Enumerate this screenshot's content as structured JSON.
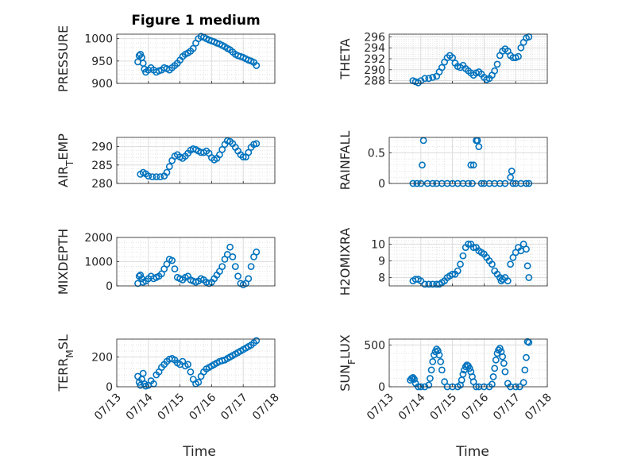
{
  "chart_data": [
    {
      "type": "scatter",
      "title": "Figure 1 medium",
      "ylabel": "PRESSURE",
      "xlim": [
        "07/13",
        "07/18"
      ],
      "ylim": [
        900,
        1010
      ],
      "yticks": [
        900,
        950,
        1000
      ],
      "x": [
        "07/13 16:00",
        "07/13 17:00",
        "07/13 18:00",
        "07/13 19:00",
        "07/13 20:00",
        "07/13 21:00",
        "07/13 22:00",
        "07/14 00:00",
        "07/14 02:00",
        "07/14 04:00",
        "07/14 06:00",
        "07/14 08:00",
        "07/14 10:00",
        "07/14 12:00",
        "07/14 14:00",
        "07/14 16:00",
        "07/14 18:00",
        "07/14 20:00",
        "07/14 22:00",
        "07/15 00:00",
        "07/15 02:00",
        "07/15 04:00",
        "07/15 06:00",
        "07/15 08:00",
        "07/15 10:00",
        "07/15 12:00",
        "07/15 14:00",
        "07/15 16:00",
        "07/15 18:00",
        "07/15 20:00",
        "07/15 22:00",
        "07/16 00:00",
        "07/16 02:00",
        "07/16 04:00",
        "07/16 06:00",
        "07/16 08:00",
        "07/16 10:00",
        "07/16 12:00",
        "07/16 14:00",
        "07/16 16:00",
        "07/16 18:00",
        "07/16 20:00",
        "07/16 22:00",
        "07/17 00:00",
        "07/17 02:00",
        "07/17 04:00",
        "07/17 06:00",
        "07/17 08:00",
        "07/17 10:00"
      ],
      "y": [
        948,
        962,
        965,
        958,
        945,
        932,
        925,
        930,
        935,
        930,
        925,
        928,
        930,
        935,
        933,
        930,
        935,
        940,
        945,
        952,
        960,
        965,
        968,
        972,
        978,
        990,
        1000,
        1005,
        1003,
        1000,
        997,
        995,
        993,
        990,
        988,
        985,
        982,
        978,
        975,
        970,
        965,
        962,
        960,
        958,
        955,
        952,
        950,
        947,
        940
      ]
    },
    {
      "type": "scatter",
      "ylabel": "THETA",
      "xlim": [
        "07/13",
        "07/18"
      ],
      "ylim": [
        287.5,
        296.5
      ],
      "yticks": [
        288,
        290,
        292,
        294,
        296
      ],
      "x": [
        "07/13 18:00",
        "07/13 20:00",
        "07/13 22:00",
        "07/14 00:00",
        "07/14 03:00",
        "07/14 06:00",
        "07/14 09:00",
        "07/14 12:00",
        "07/14 14:00",
        "07/14 16:00",
        "07/14 18:00",
        "07/14 20:00",
        "07/14 22:00",
        "07/15 00:00",
        "07/15 02:00",
        "07/15 04:00",
        "07/15 06:00",
        "07/15 08:00",
        "07/15 10:00",
        "07/15 12:00",
        "07/15 14:00",
        "07/15 16:00",
        "07/15 18:00",
        "07/15 20:00",
        "07/15 22:00",
        "07/16 00:00",
        "07/16 02:00",
        "07/16 04:00",
        "07/16 06:00",
        "07/16 08:00",
        "07/16 10:00",
        "07/16 12:00",
        "07/16 14:00",
        "07/16 16:00",
        "07/16 18:00",
        "07/16 20:00",
        "07/16 22:00",
        "07/17 00:00",
        "07/17 02:00",
        "07/17 04:00",
        "07/17 06:00",
        "07/17 08:00",
        "07/17 10:00"
      ],
      "y": [
        288.0,
        287.8,
        287.6,
        288.0,
        288.4,
        288.4,
        288.6,
        288.8,
        289.6,
        290.4,
        291.4,
        292.2,
        292.6,
        292.2,
        291.2,
        290.6,
        290.4,
        290.8,
        290.2,
        289.8,
        289.4,
        289.0,
        289.4,
        289.6,
        289.2,
        288.6,
        288.2,
        288.4,
        289.0,
        289.8,
        291.0,
        292.6,
        293.4,
        293.8,
        293.4,
        292.6,
        292.2,
        292.2,
        292.4,
        294.0,
        295.0,
        295.8,
        296.0
      ]
    },
    {
      "type": "scatter",
      "ylabel": "AIR_TEMP",
      "xlim": [
        "07/13",
        "07/18"
      ],
      "ylim": [
        280,
        292.5
      ],
      "yticks": [
        280,
        285,
        290
      ],
      "x": [
        "07/13 18:00",
        "07/13 20:00",
        "07/13 22:00",
        "07/14 00:00",
        "07/14 03:00",
        "07/14 06:00",
        "07/14 09:00",
        "07/14 12:00",
        "07/14 14:00",
        "07/14 16:00",
        "07/14 18:00",
        "07/14 20:00",
        "07/14 22:00",
        "07/15 00:00",
        "07/15 02:00",
        "07/15 04:00",
        "07/15 06:00",
        "07/15 08:00",
        "07/15 10:00",
        "07/15 12:00",
        "07/15 14:00",
        "07/15 16:00",
        "07/15 18:00",
        "07/15 20:00",
        "07/15 22:00",
        "07/16 00:00",
        "07/16 02:00",
        "07/16 04:00",
        "07/16 06:00",
        "07/16 08:00",
        "07/16 10:00",
        "07/16 12:00",
        "07/16 14:00",
        "07/16 16:00",
        "07/16 18:00",
        "07/16 20:00",
        "07/16 22:00",
        "07/17 00:00",
        "07/17 02:00",
        "07/17 04:00",
        "07/17 06:00",
        "07/17 08:00",
        "07/17 10:00"
      ],
      "y": [
        282.5,
        283.0,
        282.6,
        282.0,
        281.8,
        281.8,
        281.8,
        282.0,
        283.0,
        284.6,
        286.2,
        287.4,
        287.8,
        287.2,
        286.8,
        287.4,
        288.2,
        289.0,
        289.4,
        289.2,
        288.8,
        288.4,
        288.4,
        288.8,
        288.2,
        287.0,
        286.4,
        286.8,
        287.8,
        289.2,
        290.6,
        291.6,
        291.4,
        290.8,
        289.8,
        288.8,
        287.8,
        287.2,
        287.2,
        288.4,
        289.8,
        290.6,
        290.8
      ]
    },
    {
      "type": "scatter",
      "ylabel": "RAINFALL",
      "xlim": [
        "07/13",
        "07/18"
      ],
      "ylim": [
        0,
        0.75
      ],
      "yticks": [
        0,
        0.5
      ],
      "x": [
        "07/13 18:00",
        "07/13 21:00",
        "07/14 00:00",
        "07/14 01:00",
        "07/14 02:00",
        "07/14 05:00",
        "07/14 09:00",
        "07/14 12:00",
        "07/14 16:00",
        "07/14 20:00",
        "07/15 00:00",
        "07/15 04:00",
        "07/15 08:00",
        "07/15 12:00",
        "07/15 14:00",
        "07/15 15:00",
        "07/15 16:00",
        "07/15 18:00",
        "07/15 19:00",
        "07/15 20:00",
        "07/15 22:00",
        "07/16 00:00",
        "07/16 04:00",
        "07/16 08:00",
        "07/16 12:00",
        "07/16 16:00",
        "07/16 20:00",
        "07/16 21:00",
        "07/16 22:00",
        "07/17 00:00",
        "07/17 04:00",
        "07/17 08:00",
        "07/17 10:00"
      ],
      "y": [
        0,
        0,
        0,
        0.3,
        0.7,
        0,
        0,
        0,
        0,
        0,
        0,
        0,
        0,
        0,
        0.3,
        0,
        0.3,
        0.7,
        0.7,
        0.6,
        0,
        0,
        0,
        0,
        0,
        0,
        0.1,
        0.2,
        0,
        0,
        0,
        0,
        0
      ]
    },
    {
      "type": "scatter",
      "ylabel": "MIXDEPTH",
      "xlim": [
        "07/13",
        "07/18"
      ],
      "ylim": [
        0,
        2000
      ],
      "yticks": [
        0,
        1000,
        2000
      ],
      "x": [
        "07/13 16:00",
        "07/13 17:00",
        "07/13 18:00",
        "07/13 19:00",
        "07/13 20:00",
        "07/13 22:00",
        "07/14 00:00",
        "07/14 02:00",
        "07/14 04:00",
        "07/14 06:00",
        "07/14 08:00",
        "07/14 10:00",
        "07/14 12:00",
        "07/14 14:00",
        "07/14 16:00",
        "07/14 18:00",
        "07/14 20:00",
        "07/14 22:00",
        "07/15 00:00",
        "07/15 02:00",
        "07/15 04:00",
        "07/15 06:00",
        "07/15 08:00",
        "07/15 10:00",
        "07/15 12:00",
        "07/15 14:00",
        "07/15 16:00",
        "07/15 18:00",
        "07/15 20:00",
        "07/15 22:00",
        "07/16 00:00",
        "07/16 02:00",
        "07/16 04:00",
        "07/16 06:00",
        "07/16 08:00",
        "07/16 10:00",
        "07/16 12:00",
        "07/16 14:00",
        "07/16 16:00",
        "07/16 18:00",
        "07/16 20:00",
        "07/16 22:00",
        "07/17 00:00",
        "07/17 02:00",
        "07/17 04:00",
        "07/17 06:00",
        "07/17 08:00",
        "07/17 10:00"
      ],
      "y": [
        100,
        400,
        450,
        300,
        150,
        200,
        300,
        400,
        300,
        350,
        400,
        500,
        700,
        900,
        1100,
        1050,
        700,
        350,
        300,
        250,
        350,
        400,
        250,
        200,
        150,
        200,
        300,
        250,
        150,
        100,
        150,
        300,
        450,
        600,
        800,
        1100,
        1300,
        1600,
        1200,
        800,
        400,
        100,
        50,
        100,
        300,
        800,
        1200,
        1400
      ]
    },
    {
      "type": "scatter",
      "ylabel": "H2OMIXRA",
      "xlim": [
        "07/13",
        "07/18"
      ],
      "ylim": [
        7.5,
        10.4
      ],
      "yticks": [
        8,
        9,
        10
      ],
      "x": [
        "07/13 18:00",
        "07/13 20:00",
        "07/13 22:00",
        "07/14 00:00",
        "07/14 03:00",
        "07/14 06:00",
        "07/14 09:00",
        "07/14 12:00",
        "07/14 14:00",
        "07/14 16:00",
        "07/14 18:00",
        "07/14 20:00",
        "07/14 22:00",
        "07/15 00:00",
        "07/15 02:00",
        "07/15 04:00",
        "07/15 06:00",
        "07/15 08:00",
        "07/15 10:00",
        "07/15 12:00",
        "07/15 14:00",
        "07/15 16:00",
        "07/15 18:00",
        "07/15 20:00",
        "07/15 22:00",
        "07/16 00:00",
        "07/16 02:00",
        "07/16 04:00",
        "07/16 06:00",
        "07/16 08:00",
        "07/16 10:00",
        "07/16 12:00",
        "07/16 13:00",
        "07/16 14:00",
        "07/16 16:00",
        "07/16 18:00",
        "07/16 20:00",
        "07/16 22:00",
        "07/17 00:00",
        "07/17 02:00",
        "07/17 04:00",
        "07/17 06:00",
        "07/17 08:00",
        "07/17 09:00",
        "07/17 10:00"
      ],
      "y": [
        7.8,
        7.9,
        7.9,
        7.8,
        7.6,
        7.6,
        7.6,
        7.6,
        7.6,
        7.7,
        7.8,
        8.0,
        8.1,
        8.2,
        8.2,
        8.4,
        8.8,
        9.3,
        9.8,
        10.0,
        10.0,
        9.8,
        9.8,
        9.6,
        9.5,
        9.4,
        9.2,
        9.0,
        8.8,
        8.4,
        8.2,
        8.0,
        7.8,
        7.9,
        8.0,
        7.8,
        8.8,
        9.2,
        9.5,
        9.8,
        9.6,
        10.0,
        9.7,
        8.7,
        8.0
      ]
    },
    {
      "type": "scatter",
      "ylabel": "TERR_MSL",
      "xlim": [
        "07/13",
        "07/18"
      ],
      "ylim": [
        0,
        320
      ],
      "yticks": [
        0,
        200
      ],
      "x": [
        "07/13 16:00",
        "07/13 17:00",
        "07/13 18:00",
        "07/13 19:00",
        "07/13 20:00",
        "07/13 21:00",
        "07/13 22:00",
        "07/14 00:00",
        "07/14 02:00",
        "07/14 04:00",
        "07/14 06:00",
        "07/14 08:00",
        "07/14 10:00",
        "07/14 12:00",
        "07/14 14:00",
        "07/14 16:00",
        "07/14 18:00",
        "07/14 20:00",
        "07/14 22:00",
        "07/15 00:00",
        "07/15 02:00",
        "07/15 04:00",
        "07/15 06:00",
        "07/15 08:00",
        "07/15 10:00",
        "07/15 12:00",
        "07/15 14:00",
        "07/15 16:00",
        "07/15 18:00",
        "07/15 20:00",
        "07/15 22:00",
        "07/16 00:00",
        "07/16 02:00",
        "07/16 04:00",
        "07/16 06:00",
        "07/16 08:00",
        "07/16 10:00",
        "07/16 12:00",
        "07/16 14:00",
        "07/16 16:00",
        "07/16 18:00",
        "07/16 20:00",
        "07/16 22:00",
        "07/17 00:00",
        "07/17 02:00",
        "07/17 04:00",
        "07/17 06:00",
        "07/17 08:00",
        "07/17 10:00"
      ],
      "y": [
        70,
        30,
        10,
        50,
        90,
        20,
        5,
        10,
        40,
        20,
        80,
        100,
        130,
        150,
        170,
        185,
        190,
        180,
        160,
        150,
        170,
        140,
        150,
        100,
        50,
        20,
        30,
        70,
        100,
        120,
        130,
        140,
        150,
        160,
        170,
        175,
        180,
        190,
        200,
        210,
        220,
        230,
        240,
        250,
        260,
        270,
        280,
        295,
        310
      ]
    },
    {
      "type": "scatter",
      "ylabel": "SUN_FLUX",
      "xlim": [
        "07/13",
        "07/18"
      ],
      "ylim": [
        0,
        570
      ],
      "yticks": [
        0,
        500
      ],
      "x": [
        "07/13 16:00",
        "07/13 17:00",
        "07/13 18:00",
        "07/13 19:00",
        "07/13 20:00",
        "07/13 22:00",
        "07/14 00:00",
        "07/14 03:00",
        "07/14 06:00",
        "07/14 07:00",
        "07/14 08:00",
        "07/14 09:00",
        "07/14 10:00",
        "07/14 11:00",
        "07/14 12:00",
        "07/14 13:00",
        "07/14 14:00",
        "07/14 15:00",
        "07/14 16:00",
        "07/14 18:00",
        "07/14 20:00",
        "07/15 00:00",
        "07/15 04:00",
        "07/15 06:00",
        "07/15 07:00",
        "07/15 08:00",
        "07/15 09:00",
        "07/15 10:00",
        "07/15 11:00",
        "07/15 12:00",
        "07/15 13:00",
        "07/15 14:00",
        "07/15 15:00",
        "07/15 16:00",
        "07/15 18:00",
        "07/15 20:00",
        "07/16 00:00",
        "07/16 04:00",
        "07/16 06:00",
        "07/16 07:00",
        "07/16 08:00",
        "07/16 09:00",
        "07/16 10:00",
        "07/16 11:00",
        "07/16 12:00",
        "07/16 13:00",
        "07/16 14:00",
        "07/16 15:00",
        "07/16 16:00",
        "07/16 18:00",
        "07/16 20:00",
        "07/17 00:00",
        "07/17 03:00",
        "07/17 06:00",
        "07/17 07:00",
        "07/17 08:00",
        "07/17 09:00",
        "07/17 10:00"
      ],
      "y": [
        80,
        100,
        110,
        90,
        40,
        0,
        0,
        0,
        20,
        100,
        200,
        300,
        380,
        420,
        450,
        430,
        380,
        300,
        200,
        60,
        0,
        0,
        0,
        20,
        80,
        150,
        200,
        240,
        260,
        250,
        220,
        180,
        120,
        60,
        0,
        0,
        0,
        0,
        30,
        120,
        220,
        320,
        400,
        440,
        460,
        420,
        360,
        280,
        180,
        40,
        0,
        0,
        0,
        50,
        200,
        350,
        540,
        530
      ]
    }
  ],
  "xticks": [
    "07/13",
    "07/14",
    "07/15",
    "07/16",
    "07/17",
    "07/18"
  ],
  "xlabel_left": "Time",
  "xlabel_right": "Time"
}
